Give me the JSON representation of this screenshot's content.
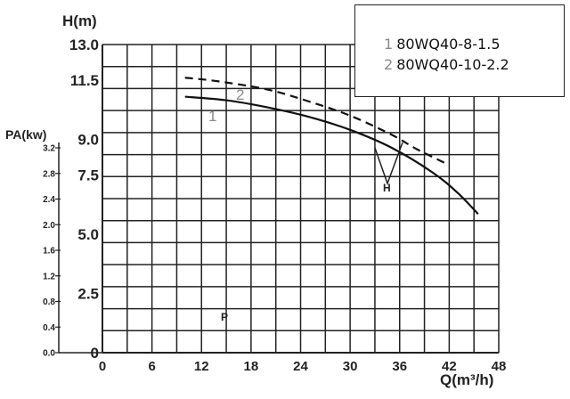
{
  "chart_data": {
    "type": "line",
    "x_axis": {
      "label": "Q(m³/h)",
      "range": [
        0,
        48
      ],
      "ticks": [
        "0",
        "6",
        "12",
        "18",
        "24",
        "30",
        "36",
        "42",
        "48"
      ]
    },
    "y_axis": {
      "label": "H(m)",
      "range": [
        0,
        13
      ],
      "ticks": [
        "0",
        "2.5",
        "5.0",
        "7.5",
        "9.0",
        "11.5",
        "13.0"
      ]
    },
    "power_axis": {
      "label": "PA(kw)",
      "range": [
        0,
        3.2
      ],
      "ticks": [
        "0.0",
        "0.4",
        "0.8",
        "1.2",
        "1.6",
        "2.0",
        "2.4",
        "2.8",
        "3.2"
      ]
    },
    "grid": true,
    "legend_position": "top-right",
    "series": [
      {
        "name": "80WQ40-8-1.5",
        "curve_label": "1",
        "style": "solid",
        "x": [
          10,
          15,
          20,
          25,
          30,
          35,
          40,
          43,
          45.5
        ],
        "y": [
          10.8,
          10.65,
          10.35,
          9.95,
          9.4,
          8.65,
          7.6,
          6.75,
          5.85
        ]
      },
      {
        "name": "80WQ40-10-2.2",
        "curve_label": "2",
        "style": "dashed",
        "x": [
          10,
          14,
          20,
          25,
          30,
          35,
          38,
          41.5
        ],
        "y": [
          11.6,
          11.45,
          11.1,
          10.6,
          10.0,
          9.2,
          8.6,
          8.0
        ]
      }
    ],
    "annotations": [
      {
        "text": "H"
      },
      {
        "text": "P"
      }
    ]
  },
  "legend": {
    "items": [
      {
        "number": "1",
        "text": "80WQ40-8-1.5"
      },
      {
        "number": "2",
        "text": "80WQ40-10-2.2"
      }
    ]
  },
  "colors": {
    "curve": "#111111",
    "grid": "#222222",
    "curve_label": "#8a8a8a"
  }
}
